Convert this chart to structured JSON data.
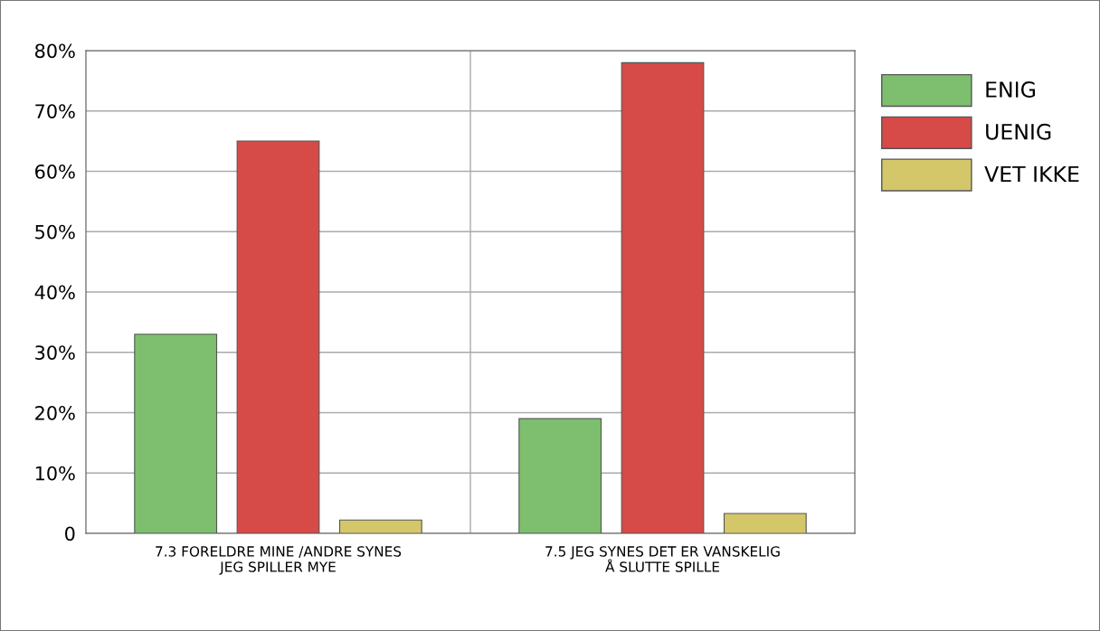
{
  "chart_data": {
    "type": "bar",
    "categories": [
      "7.3 FORELDRE MINE /ANDRE SYNES\nJEG SPILLER MYE",
      "7.5 JEG SYNES DET ER VANSKELIG\nÅ SLUTTE SPILLE"
    ],
    "series": [
      {
        "name": "ENIG",
        "color": "#7dbf6e",
        "values": [
          33,
          19
        ]
      },
      {
        "name": "UENIG",
        "color": "#d64a47",
        "values": [
          65,
          78
        ]
      },
      {
        "name": "VET IKKE",
        "color": "#d4c76a",
        "values": [
          2.2,
          3.3
        ]
      }
    ],
    "ylim": [
      0,
      80
    ],
    "yticks": [
      {
        "value": 0,
        "label": "0"
      },
      {
        "value": 10,
        "label": "10%"
      },
      {
        "value": 20,
        "label": "20%"
      },
      {
        "value": 30,
        "label": "30%"
      },
      {
        "value": 40,
        "label": "40%"
      },
      {
        "value": 50,
        "label": "50%"
      },
      {
        "value": 60,
        "label": "60%"
      },
      {
        "value": 70,
        "label": "70%"
      },
      {
        "value": 80,
        "label": "80%"
      }
    ],
    "grid": true,
    "legend": "right"
  }
}
